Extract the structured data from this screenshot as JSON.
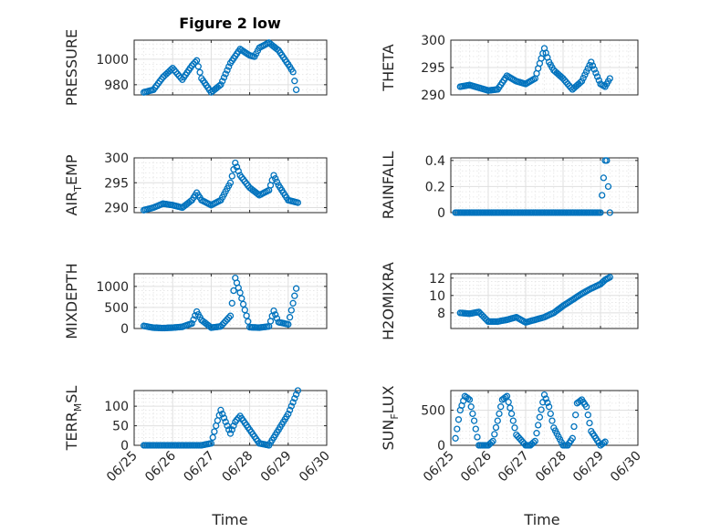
{
  "figure": {
    "title": "Figure 2 low",
    "xlabel": "Time",
    "x_ticks": [
      "06/25",
      "06/26",
      "06/27",
      "06/28",
      "06/29",
      "06/30"
    ],
    "marker_color": "#0072bd",
    "grid": true
  },
  "chart_data": [
    {
      "type": "scatter",
      "name": "pressure",
      "title": "Figure 2 low",
      "ylabel": "PRESSURE",
      "ylabel_main": "PRESSURE",
      "ylabel_sub": "",
      "ylabel_rest": "",
      "xlim": [
        "06/25",
        "06/30"
      ],
      "ylim": [
        972,
        1015
      ],
      "yticks": [
        980,
        1000
      ],
      "ytick_labels": [
        "980",
        "1000"
      ],
      "grid": true,
      "x": [
        "06/25 06:00",
        "06/25 12:00",
        "06/25 18:00",
        "06/26 00:00",
        "06/26 06:00",
        "06/26 12:00",
        "06/26 15:00",
        "06/26 18:00",
        "06/27 00:00",
        "06/27 06:00",
        "06/27 12:00",
        "06/27 18:00",
        "06/28 00:00",
        "06/28 03:00",
        "06/28 06:00",
        "06/28 12:00",
        "06/28 18:00",
        "06/29 00:00",
        "06/29 03:00",
        "06/29 05:00"
      ],
      "y": [
        974,
        976,
        986,
        993,
        984,
        995,
        999,
        985,
        974,
        980,
        997,
        1008,
        1003,
        1002,
        1009,
        1013,
        1007,
        996,
        990,
        976
      ]
    },
    {
      "type": "scatter",
      "name": "theta",
      "ylabel": "THETA",
      "ylabel_main": "THETA",
      "ylabel_sub": "",
      "ylabel_rest": "",
      "xlim": [
        "06/25",
        "06/30"
      ],
      "ylim": [
        290,
        300
      ],
      "yticks": [
        290,
        295,
        300
      ],
      "ytick_labels": [
        "290",
        "295",
        "300"
      ],
      "grid": true,
      "x": [
        "06/25 06:00",
        "06/25 12:00",
        "06/25 18:00",
        "06/26 00:00",
        "06/26 06:00",
        "06/26 12:00",
        "06/26 18:00",
        "06/27 00:00",
        "06/27 06:00",
        "06/27 12:00",
        "06/27 15:00",
        "06/27 18:00",
        "06/28 00:00",
        "06/28 06:00",
        "06/28 12:00",
        "06/28 18:00",
        "06/29 00:00",
        "06/29 03:00",
        "06/29 06:00"
      ],
      "y": [
        291.5,
        291.8,
        291.3,
        290.8,
        291.0,
        293.5,
        292.5,
        292.0,
        293.0,
        298.5,
        296.0,
        294.5,
        293.0,
        291.0,
        292.5,
        296.0,
        292.0,
        291.5,
        293.0
      ]
    },
    {
      "type": "scatter",
      "name": "air-temp",
      "ylabel": "AIR_TEMP",
      "ylabel_main": "AIR",
      "ylabel_sub": "T",
      "ylabel_rest": "EMP",
      "xlim": [
        "06/25",
        "06/30"
      ],
      "ylim": [
        289,
        300
      ],
      "yticks": [
        290,
        295,
        300
      ],
      "ytick_labels": [
        "290",
        "295",
        "300"
      ],
      "grid": true,
      "x": [
        "06/25 06:00",
        "06/25 12:00",
        "06/25 18:00",
        "06/26 00:00",
        "06/26 06:00",
        "06/26 12:00",
        "06/26 15:00",
        "06/26 18:00",
        "06/27 00:00",
        "06/27 06:00",
        "06/27 12:00",
        "06/27 15:00",
        "06/27 18:00",
        "06/28 00:00",
        "06/28 06:00",
        "06/28 12:00",
        "06/28 15:00",
        "06/28 18:00",
        "06/29 00:00",
        "06/29 06:00"
      ],
      "y": [
        289.5,
        290.0,
        290.8,
        290.5,
        290.0,
        291.5,
        293.0,
        291.5,
        290.5,
        291.5,
        295.0,
        299.0,
        296.5,
        294.0,
        292.5,
        293.5,
        296.5,
        294.5,
        291.5,
        291.0
      ]
    },
    {
      "type": "scatter",
      "name": "rainfall",
      "ylabel": "RAINFALL",
      "ylabel_main": "RAINFALL",
      "ylabel_sub": "",
      "ylabel_rest": "",
      "xlim": [
        "06/25",
        "06/30"
      ],
      "ylim": [
        0,
        0.42
      ],
      "yticks": [
        0,
        0.2,
        0.4
      ],
      "ytick_labels": [
        "0",
        "0.2",
        "0.4"
      ],
      "grid": true,
      "x": [
        "06/25 03:00",
        "06/25 12:00",
        "06/25 21:00",
        "06/26 06:00",
        "06/26 15:00",
        "06/27 00:00",
        "06/27 09:00",
        "06/27 18:00",
        "06/28 03:00",
        "06/28 12:00",
        "06/28 21:00",
        "06/29 00:00",
        "06/29 03:00",
        "06/29 04:00",
        "06/29 06:00"
      ],
      "y": [
        0,
        0,
        0,
        0,
        0,
        0,
        0,
        0,
        0,
        0,
        0,
        0,
        0.4,
        0.4,
        0
      ]
    },
    {
      "type": "scatter",
      "name": "mixdepth",
      "ylabel": "MIXDEPTH",
      "ylabel_main": "MIXDEPTH",
      "ylabel_sub": "",
      "ylabel_rest": "",
      "xlim": [
        "06/25",
        "06/30"
      ],
      "ylim": [
        0,
        1300
      ],
      "yticks": [
        0,
        500,
        1000
      ],
      "ytick_labels": [
        "0",
        "500",
        "1000"
      ],
      "grid": true,
      "x": [
        "06/25 06:00",
        "06/25 12:00",
        "06/25 18:00",
        "06/26 00:00",
        "06/26 06:00",
        "06/26 12:00",
        "06/26 15:00",
        "06/26 18:00",
        "06/27 00:00",
        "06/27 06:00",
        "06/27 12:00",
        "06/27 15:00",
        "06/27 18:00",
        "06/28 00:00",
        "06/28 06:00",
        "06/28 12:00",
        "06/28 15:00",
        "06/28 18:00",
        "06/29 00:00",
        "06/29 03:00",
        "06/29 05:00"
      ],
      "y": [
        60,
        20,
        10,
        20,
        40,
        120,
        400,
        200,
        20,
        50,
        300,
        1200,
        850,
        30,
        20,
        50,
        420,
        150,
        100,
        600,
        950
      ]
    },
    {
      "type": "scatter",
      "name": "h2o-mixing-ratio",
      "ylabel": "H2OMIXRA",
      "ylabel_main": "H2OMIXRA",
      "ylabel_sub": "",
      "ylabel_rest": "",
      "xlim": [
        "06/25",
        "06/30"
      ],
      "ylim": [
        6.2,
        12.5
      ],
      "yticks": [
        8,
        10,
        12
      ],
      "ytick_labels": [
        "8",
        "10",
        "12"
      ],
      "grid": true,
      "x": [
        "06/25 06:00",
        "06/25 12:00",
        "06/25 18:00",
        "06/26 00:00",
        "06/26 06:00",
        "06/26 12:00",
        "06/26 18:00",
        "06/27 00:00",
        "06/27 06:00",
        "06/27 12:00",
        "06/27 18:00",
        "06/28 00:00",
        "06/28 06:00",
        "06/28 12:00",
        "06/28 18:00",
        "06/29 00:00",
        "06/29 03:00",
        "06/29 06:00"
      ],
      "y": [
        8.0,
        7.9,
        8.1,
        7.0,
        7.0,
        7.2,
        7.5,
        6.9,
        7.2,
        7.5,
        8.0,
        8.8,
        9.5,
        10.2,
        10.8,
        11.3,
        11.8,
        12.1
      ]
    },
    {
      "type": "scatter",
      "name": "terrain-msl",
      "ylabel": "TERR_MSL",
      "ylabel_main": "TERR",
      "ylabel_sub": "M",
      "ylabel_rest": "SL",
      "xlim": [
        "06/25",
        "06/30"
      ],
      "ylim": [
        0,
        140
      ],
      "yticks": [
        0,
        50,
        100
      ],
      "ytick_labels": [
        "0",
        "50",
        "100"
      ],
      "grid": true,
      "x": [
        "06/25 06:00",
        "06/25 12:00",
        "06/25 18:00",
        "06/26 00:00",
        "06/26 06:00",
        "06/26 12:00",
        "06/26 18:00",
        "06/27 00:00",
        "06/27 03:00",
        "06/27 06:00",
        "06/27 09:00",
        "06/27 12:00",
        "06/27 15:00",
        "06/27 18:00",
        "06/28 00:00",
        "06/28 06:00",
        "06/28 12:00",
        "06/28 18:00",
        "06/29 00:00",
        "06/29 03:00",
        "06/29 06:00"
      ],
      "y": [
        0,
        0,
        0,
        0,
        0,
        0,
        0,
        5,
        50,
        90,
        60,
        30,
        60,
        75,
        40,
        5,
        0,
        40,
        80,
        110,
        140
      ]
    },
    {
      "type": "scatter",
      "name": "sun-flux",
      "ylabel": "SUN_FLUX",
      "ylabel_main": "SUN",
      "ylabel_sub": "F",
      "ylabel_rest": "LUX",
      "xlim": [
        "06/25",
        "06/30"
      ],
      "ylim": [
        0,
        780
      ],
      "yticks": [
        0,
        500
      ],
      "ytick_labels": [
        "0",
        "500"
      ],
      "grid": true,
      "x": [
        "06/25 03:00",
        "06/25 06:00",
        "06/25 09:00",
        "06/25 12:00",
        "06/25 15:00",
        "06/25 18:00",
        "06/26 00:00",
        "06/26 03:00",
        "06/26 06:00",
        "06/26 09:00",
        "06/26 12:00",
        "06/26 15:00",
        "06/26 18:00",
        "06/27 00:00",
        "06/27 03:00",
        "06/27 06:00",
        "06/27 09:00",
        "06/27 12:00",
        "06/27 15:00",
        "06/27 18:00",
        "06/28 00:00",
        "06/28 03:00",
        "06/28 06:00",
        "06/28 09:00",
        "06/28 12:00",
        "06/28 15:00",
        "06/28 18:00",
        "06/29 00:00",
        "06/29 03:00"
      ],
      "y": [
        100,
        500,
        700,
        650,
        350,
        0,
        0,
        60,
        350,
        650,
        700,
        450,
        150,
        0,
        0,
        60,
        400,
        720,
        550,
        250,
        0,
        0,
        100,
        600,
        650,
        550,
        200,
        0,
        50
      ]
    }
  ]
}
